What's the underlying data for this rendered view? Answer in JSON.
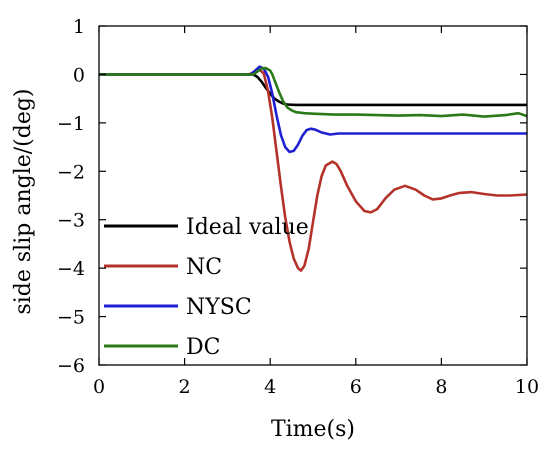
{
  "chart_data": {
    "type": "line",
    "title": "",
    "xlabel": "Time(s)",
    "ylabel": "side slip angle/(deg)",
    "xlim": [
      0,
      10
    ],
    "ylim": [
      -6,
      1
    ],
    "xticks": [
      0,
      2,
      4,
      6,
      8,
      10
    ],
    "yticks": [
      1,
      0,
      -1,
      -2,
      -3,
      -4,
      -5,
      -6
    ],
    "xtick_labels": [
      "0",
      "2",
      "4",
      "6",
      "8",
      "10"
    ],
    "ytick_labels": [
      "1",
      "0",
      "−1",
      "−2",
      "−3",
      "−4",
      "−5",
      "−6"
    ],
    "grid": false,
    "legend_position": "left-bottom",
    "series": [
      {
        "name": "Ideal value",
        "color": "#000000",
        "x": [
          0,
          3.6,
          3.7,
          3.8,
          3.9,
          4.0,
          4.1,
          4.2,
          4.3,
          4.4,
          4.6,
          5.0,
          6.0,
          8.0,
          10.0
        ],
        "y": [
          0,
          0,
          -0.05,
          -0.15,
          -0.28,
          -0.4,
          -0.5,
          -0.56,
          -0.6,
          -0.62,
          -0.63,
          -0.63,
          -0.63,
          -0.63,
          -0.63
        ]
      },
      {
        "name": "NC",
        "color": "#b5322a",
        "x": [
          0,
          3.5,
          3.65,
          3.75,
          3.85,
          3.95,
          4.05,
          4.15,
          4.25,
          4.35,
          4.45,
          4.55,
          4.65,
          4.72,
          4.8,
          4.9,
          5.0,
          5.1,
          5.2,
          5.3,
          5.45,
          5.55,
          5.65,
          5.8,
          6.0,
          6.2,
          6.35,
          6.5,
          6.7,
          6.9,
          7.15,
          7.4,
          7.6,
          7.8,
          8.0,
          8.2,
          8.4,
          8.7,
          9.0,
          9.3,
          9.6,
          10.0
        ],
        "y": [
          0,
          0,
          0.06,
          0.1,
          0.02,
          -0.35,
          -0.9,
          -1.6,
          -2.3,
          -2.95,
          -3.45,
          -3.8,
          -4.0,
          -4.05,
          -3.95,
          -3.6,
          -3.05,
          -2.5,
          -2.1,
          -1.88,
          -1.8,
          -1.85,
          -2.0,
          -2.3,
          -2.62,
          -2.82,
          -2.85,
          -2.78,
          -2.55,
          -2.38,
          -2.3,
          -2.38,
          -2.5,
          -2.58,
          -2.56,
          -2.5,
          -2.45,
          -2.43,
          -2.47,
          -2.5,
          -2.5,
          -2.48
        ]
      },
      {
        "name": "NYSC",
        "color": "#1f1fd4",
        "x": [
          0,
          3.55,
          3.65,
          3.75,
          3.85,
          3.95,
          4.05,
          4.15,
          4.25,
          4.35,
          4.45,
          4.55,
          4.65,
          4.75,
          4.85,
          4.95,
          5.05,
          5.2,
          5.4,
          5.6,
          6.0,
          7.0,
          8.0,
          9.0,
          10.0
        ],
        "y": [
          0,
          0,
          0.08,
          0.16,
          0.12,
          -0.05,
          -0.4,
          -0.85,
          -1.25,
          -1.5,
          -1.6,
          -1.58,
          -1.45,
          -1.27,
          -1.15,
          -1.12,
          -1.14,
          -1.2,
          -1.24,
          -1.22,
          -1.22,
          -1.22,
          -1.22,
          -1.22,
          -1.22
        ]
      },
      {
        "name": "DC",
        "color": "#2a7a1a",
        "x": [
          0,
          3.6,
          3.7,
          3.8,
          3.9,
          4.0,
          4.05,
          4.1,
          4.2,
          4.3,
          4.4,
          4.5,
          4.6,
          4.8,
          5.0,
          5.5,
          6.0,
          6.5,
          7.0,
          7.5,
          8.0,
          8.5,
          9.0,
          9.5,
          9.8,
          10.0
        ],
        "y": [
          0,
          0,
          0.06,
          0.12,
          0.13,
          0.08,
          0.0,
          -0.12,
          -0.35,
          -0.55,
          -0.68,
          -0.74,
          -0.78,
          -0.8,
          -0.81,
          -0.83,
          -0.83,
          -0.84,
          -0.85,
          -0.84,
          -0.86,
          -0.83,
          -0.87,
          -0.84,
          -0.8,
          -0.86
        ]
      }
    ]
  }
}
